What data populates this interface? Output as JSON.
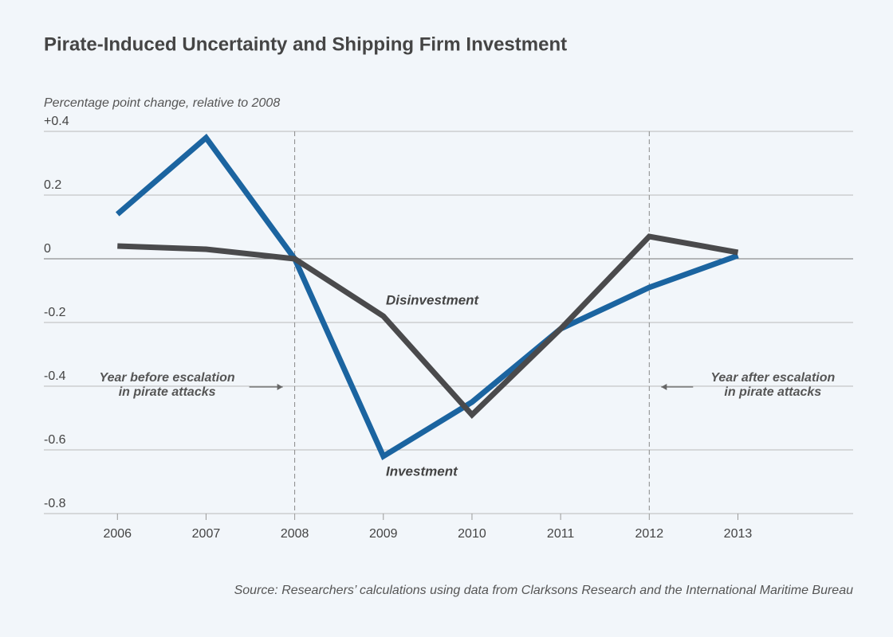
{
  "chart_data": {
    "type": "line",
    "title": "Pirate-Induced Uncertainty and Shipping Firm Investment",
    "y_label": "Percentage point change, relative to 2008",
    "source": "Source: Researchers’ calculations using data from Clarksons Research and the International Maritime Bureau",
    "x": [
      2006,
      2007,
      2008,
      2009,
      2010,
      2011,
      2012,
      2013
    ],
    "xlim": [
      2005.17,
      2014.3
    ],
    "xticks": [
      2006,
      2007,
      2008,
      2009,
      2010,
      2011,
      2012,
      2013
    ],
    "ylim": [
      -0.8,
      0.4
    ],
    "yticks": [
      {
        "value": 0.4,
        "label": "+0.4"
      },
      0.2,
      0,
      -0.2,
      -0.4,
      -0.6,
      -0.8
    ],
    "grid": true,
    "series": [
      {
        "name": "Investment",
        "color": "#1b64a0",
        "values": [
          0.14,
          0.38,
          0,
          -0.62,
          -0.45,
          -0.22,
          -0.09,
          0.01
        ]
      },
      {
        "name": "Disinvestment",
        "color": "#4a4a4c",
        "values": [
          0.04,
          0.03,
          0,
          -0.18,
          -0.49,
          -0.22,
          0.07,
          0.02
        ]
      }
    ],
    "annotations": [
      {
        "x": 2008,
        "lines": [
          "Year before escalation",
          "in pirate attacks"
        ]
      },
      {
        "x": 2012,
        "lines": [
          "Year after escalation",
          "in pirate attacks"
        ]
      }
    ]
  }
}
